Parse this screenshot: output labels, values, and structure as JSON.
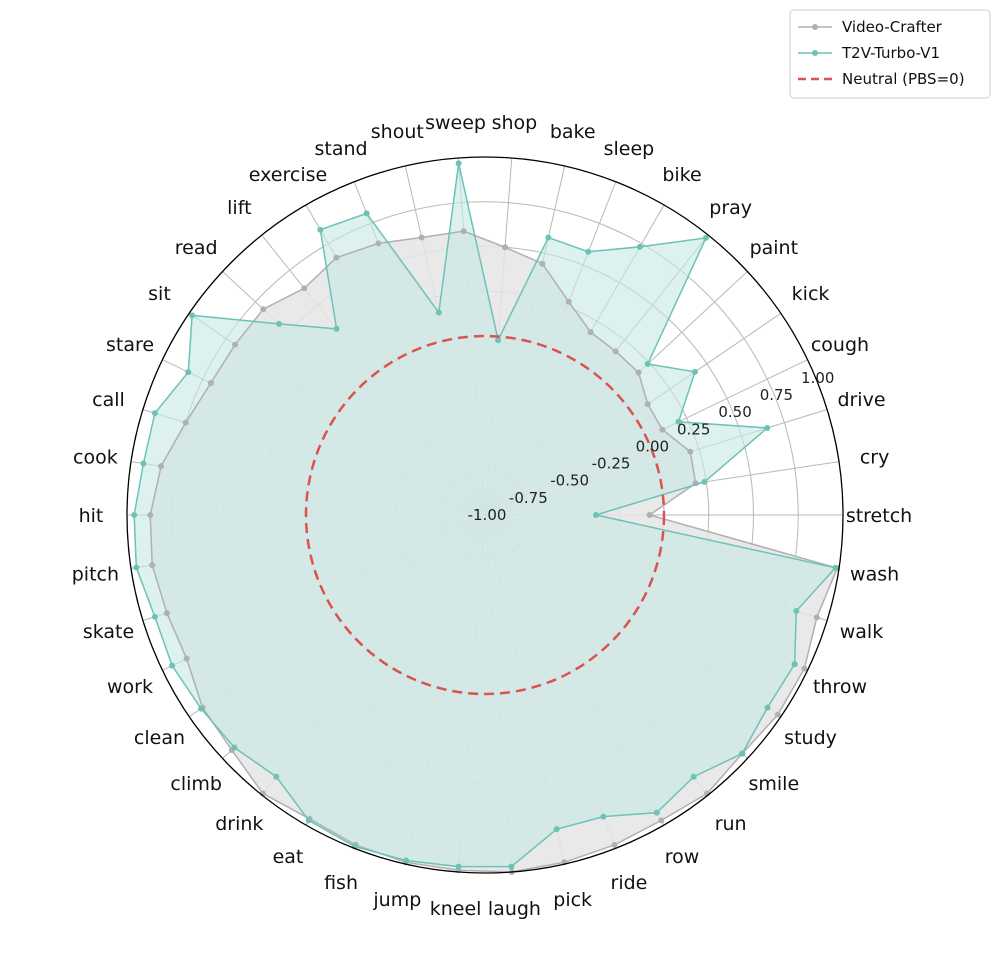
{
  "chart_data": {
    "type": "radar",
    "categories": [
      "stretch",
      "cry",
      "drive",
      "cough",
      "kick",
      "paint",
      "pray",
      "bike",
      "sleep",
      "bake",
      "shop",
      "sweep",
      "shout",
      "stand",
      "exercise",
      "lift",
      "read",
      "sit",
      "stare",
      "call",
      "cook",
      "hit",
      "pitch",
      "skate",
      "work",
      "clean",
      "climb",
      "drink",
      "eat",
      "fish",
      "jump",
      "kneel",
      "laugh",
      "pick",
      "ride",
      "row",
      "run",
      "smile",
      "study",
      "throw",
      "walk",
      "wash"
    ],
    "rlim": [
      -1.0,
      1.0
    ],
    "rticks": [
      -1.0,
      -0.75,
      -0.5,
      -0.25,
      0.0,
      0.25,
      0.5,
      0.75,
      1.0
    ],
    "rtick_labels": [
      "-1.00",
      "-0.75",
      "-0.50",
      "-0.25",
      "0.00",
      "0.25",
      "0.50",
      "0.75",
      "1.00"
    ],
    "grid": true,
    "legend_position": "top-right",
    "series": [
      {
        "name": "Video-Crafter",
        "color": "#b0b0b0",
        "fill": "#e5e5e5",
        "values": [
          -0.08,
          0.19,
          0.2,
          0.1,
          0.1,
          0.17,
          0.17,
          0.18,
          0.28,
          0.44,
          0.5,
          0.59,
          0.59,
          0.63,
          0.66,
          0.62,
          0.69,
          0.69,
          0.7,
          0.75,
          0.83,
          0.87,
          0.88,
          0.86,
          0.85,
          0.91,
          0.93,
          0.99,
          0.96,
          0.98,
          0.99,
          0.99,
          1.0,
          0.99,
          0.98,
          0.97,
          0.99,
          0.96,
          0.98,
          0.98,
          0.94,
          0.99
        ]
      },
      {
        "name": "T2V-Turbo-V1",
        "color": "#6cc3b5",
        "fill": "#c7e8e3",
        "values": [
          -0.38,
          0.24,
          0.65,
          0.2,
          0.42,
          0.24,
          0.98,
          0.73,
          0.58,
          0.59,
          -0.02,
          0.97,
          0.16,
          0.81,
          0.84,
          0.33,
          0.57,
          0.98,
          0.84,
          0.93,
          0.93,
          0.96,
          0.97,
          0.93,
          0.94,
          0.92,
          0.91,
          0.87,
          0.97,
          0.99,
          0.98,
          0.97,
          0.97,
          0.8,
          0.81,
          0.92,
          0.87,
          0.96,
          0.91,
          0.92,
          0.82,
          0.98
        ]
      }
    ],
    "reference_line": {
      "name": "Neutral (PBS=0)",
      "value": 0.0,
      "color": "#d9534f",
      "style": "dashed"
    }
  }
}
